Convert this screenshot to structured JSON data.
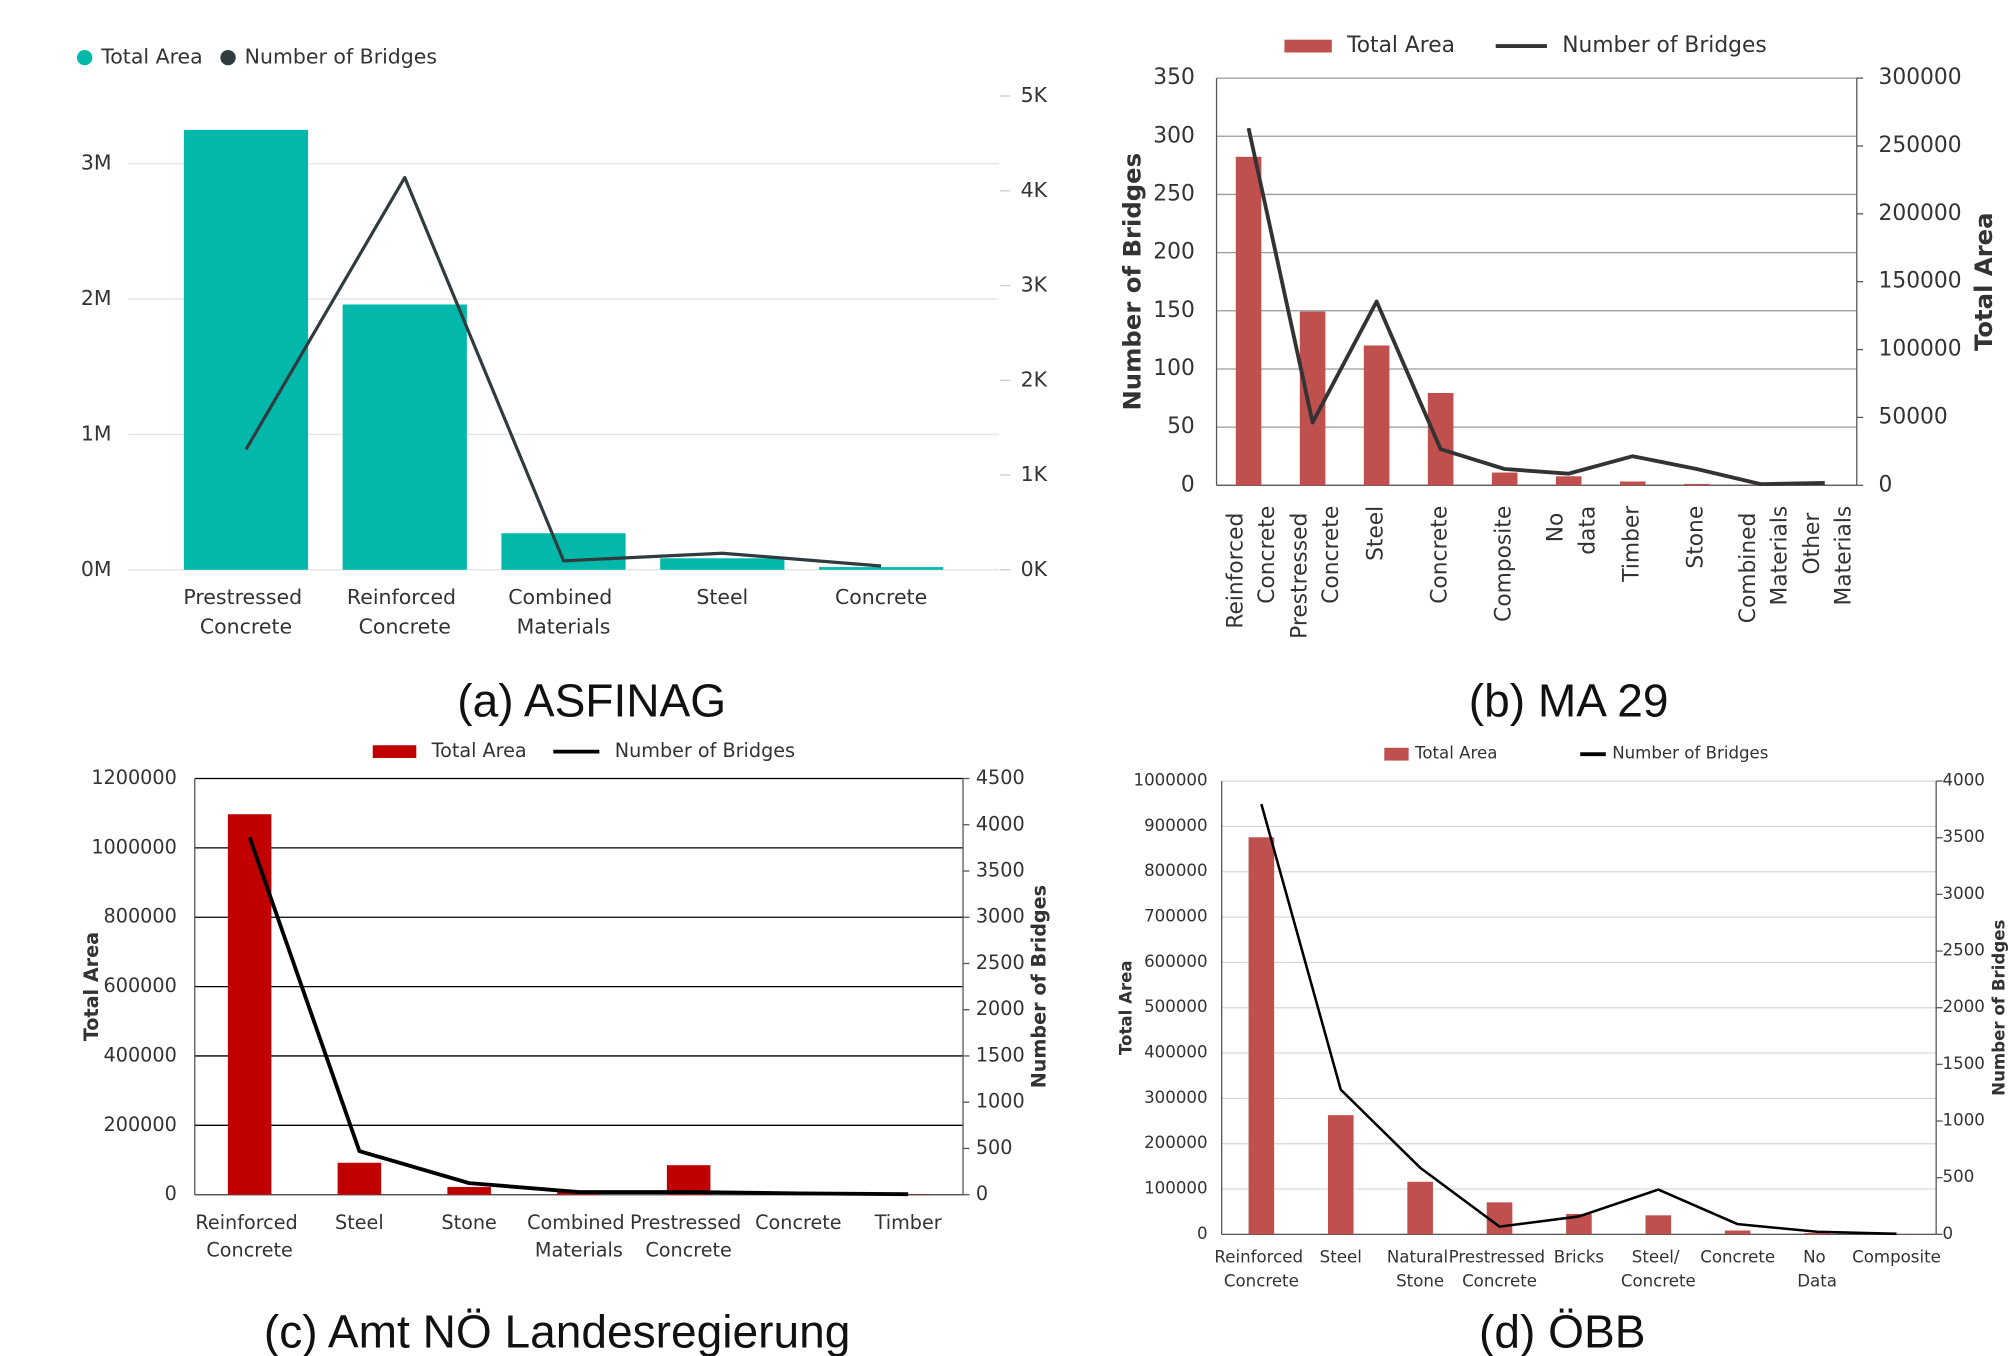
{
  "chart_data": [
    {
      "type": "combo",
      "caption": "(a) ASFINAG",
      "legend_marker": "dot",
      "categories": [
        "Prestressed Concrete",
        "Reinforced Concrete",
        "Combined Materials",
        "Steel",
        "Concrete"
      ],
      "series": [
        {
          "name": "Total Area",
          "type": "bar",
          "color": "#01b8aa",
          "values": [
            3250000,
            1960000,
            270000,
            85000,
            20000
          ]
        },
        {
          "name": "Number of Bridges",
          "type": "line",
          "axis": "y2",
          "color": "#2f3b3f",
          "values": [
            1270,
            4140,
            95,
            175,
            40
          ]
        }
      ],
      "ylim": [
        0,
        3500000
      ],
      "yticks": [
        {
          "value": 0,
          "label": "0M"
        },
        {
          "value": 1000000,
          "label": "1M"
        },
        {
          "value": 2000000,
          "label": "2M"
        },
        {
          "value": 3000000,
          "label": "3M"
        }
      ],
      "y2lim": [
        0,
        5000
      ],
      "y2ticks": [
        {
          "value": 0,
          "label": "0K"
        },
        {
          "value": 1000,
          "label": "1K"
        },
        {
          "value": 2000,
          "label": "2K"
        },
        {
          "value": 3000,
          "label": "3K"
        },
        {
          "value": 4000,
          "label": "4K"
        },
        {
          "value": 5000,
          "label": "5K"
        }
      ],
      "grid": true
    },
    {
      "type": "combo",
      "caption": "(b) MA 29",
      "legend_marker": "rect",
      "ylabel": "Number of Bridges",
      "y2label": "Total Area",
      "categories": [
        "Reinforced Concrete",
        "Prestressed Concrete",
        "Steel",
        "Concrete",
        "Composite",
        "No data",
        "Timber",
        "Stone",
        "Combined Materials",
        "Other Materials"
      ],
      "series": [
        {
          "name": "Total Area",
          "type": "bar",
          "axis": "y2",
          "color": "#c0504d",
          "values": [
            242000,
            128000,
            103000,
            68000,
            9400,
            6600,
            2800,
            1000,
            300,
            0
          ]
        },
        {
          "name": "Number of Bridges",
          "type": "line",
          "color": "#333333",
          "values": [
            307,
            54,
            158,
            31,
            14,
            10,
            25,
            14,
            1,
            2
          ]
        }
      ],
      "ylim": [
        0,
        350
      ],
      "yticks": [
        0,
        50,
        100,
        150,
        200,
        250,
        300,
        350
      ],
      "y2lim": [
        0,
        300000
      ],
      "y2ticks": [
        0,
        50000,
        100000,
        150000,
        200000,
        250000,
        300000
      ],
      "grid": true
    },
    {
      "type": "combo",
      "caption": "(c) Amt NÖ Landesregierung",
      "legend_marker": "rect",
      "ylabel": "Total Area",
      "y2label": "Number of Bridges",
      "categories": [
        "Reinforced Concrete",
        "Steel",
        "Stone",
        "Combined Materials",
        "Prestressed Concrete",
        "Concrete",
        "Timber"
      ],
      "series": [
        {
          "name": "Total Area",
          "type": "bar",
          "color": "#c00000",
          "values": [
            1097000,
            92000,
            22000,
            7000,
            85000,
            3000,
            1000
          ]
        },
        {
          "name": "Number of Bridges",
          "type": "line",
          "axis": "y2",
          "color": "#000000",
          "values": [
            3863,
            471,
            125,
            28,
            28,
            14,
            5
          ]
        }
      ],
      "ylim": [
        0,
        1200000
      ],
      "yticks": [
        0,
        200000,
        400000,
        600000,
        800000,
        1000000,
        1200000
      ],
      "y2lim": [
        0,
        4500
      ],
      "y2ticks": [
        0,
        500,
        1000,
        1500,
        2000,
        2500,
        3000,
        3500,
        4000,
        4500
      ],
      "grid": true
    },
    {
      "type": "combo",
      "caption": "(d) ÖBB",
      "legend_marker": "rect",
      "ylabel": "Total Area",
      "y2label": "Number of Bridges",
      "categories": [
        "Reinforced Concrete",
        "Steel",
        "Natural Stone",
        "Prestressed Concrete",
        "Bricks",
        "Steel/ Concrete",
        "Concrete",
        "No Data",
        "Composite"
      ],
      "series": [
        {
          "name": "Total Area",
          "type": "bar",
          "color": "#c0504d",
          "values": [
            876000,
            263000,
            116000,
            70600,
            45000,
            42000,
            8500,
            3000,
            1000
          ]
        },
        {
          "name": "Number of Bridges",
          "type": "line",
          "axis": "y2",
          "color": "#000000",
          "values": [
            3797,
            1277,
            588,
            68,
            158,
            395,
            90,
            23,
            5
          ]
        }
      ],
      "ylim": [
        0,
        1000000
      ],
      "yticks": [
        0,
        100000,
        200000,
        300000,
        400000,
        500000,
        600000,
        700000,
        800000,
        900000,
        1000000
      ],
      "y2lim": [
        0,
        4000
      ],
      "y2ticks": [
        0,
        500,
        1000,
        1500,
        2000,
        2500,
        3000,
        3500,
        4000
      ],
      "grid": true
    }
  ]
}
